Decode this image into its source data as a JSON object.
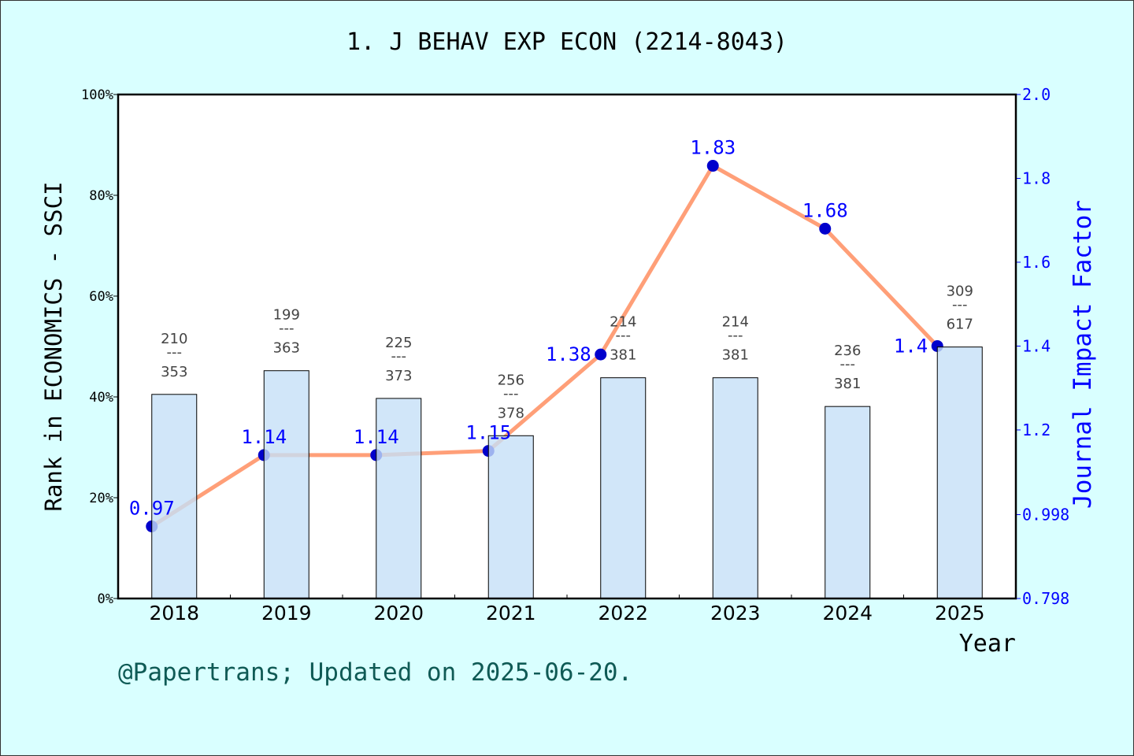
{
  "title": "1. J BEHAV EXP ECON (2214-8043)",
  "footer": "@Papertrans; Updated on 2025-06-20.",
  "chart_data": {
    "type": "bar+line",
    "title": "1. J BEHAV EXP ECON (2214-8043)",
    "xlabel": "Year",
    "ylabel_left": "Rank in ECONOMICS - SSCI",
    "ylabel_right": "Journal Impact Factor",
    "categories": [
      "2018",
      "2019",
      "2020",
      "2021",
      "2022",
      "2023",
      "2024",
      "2025"
    ],
    "left_axis": {
      "ylim": [
        0,
        100
      ],
      "ticks": [
        "0%",
        "20%",
        "40%",
        "60%",
        "80%",
        "100%"
      ]
    },
    "right_axis": {
      "ylim": [
        0.798,
        2.0
      ],
      "ticks": [
        "0.798",
        "0.998",
        "1.2",
        "1.4",
        "1.6",
        "1.8",
        "2.0"
      ]
    },
    "rank": [
      210,
      199,
      225,
      256,
      214,
      214,
      236,
      309
    ],
    "total": [
      353,
      363,
      373,
      378,
      381,
      381,
      381,
      617
    ],
    "bar_percent": [
      40.5,
      45.2,
      39.7,
      32.3,
      43.8,
      43.8,
      38.1,
      49.9
    ],
    "impact_factor": [
      0.97,
      1.14,
      1.14,
      1.15,
      1.38,
      1.83,
      1.68,
      1.4
    ],
    "impact_factor_labels": [
      "0.97",
      "1.14",
      "1.14",
      "1.15",
      "1.38",
      "1.83",
      "1.68",
      "1.4"
    ],
    "colors": {
      "bar": "#c5e0f7",
      "line": "#ff9f78",
      "point": "#0000cc",
      "right_axis": "#0000ff",
      "background": "#d9ffff"
    },
    "grid": false
  }
}
